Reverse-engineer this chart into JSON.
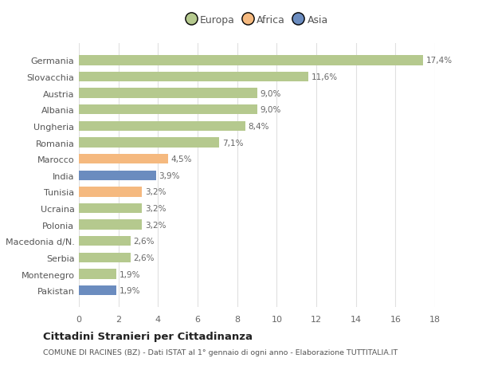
{
  "categories": [
    "Pakistan",
    "Montenegro",
    "Serbia",
    "Macedonia d/N.",
    "Polonia",
    "Ucraina",
    "Tunisia",
    "India",
    "Marocco",
    "Romania",
    "Ungheria",
    "Albania",
    "Austria",
    "Slovacchia",
    "Germania"
  ],
  "values": [
    1.9,
    1.9,
    2.6,
    2.6,
    3.2,
    3.2,
    3.2,
    3.9,
    4.5,
    7.1,
    8.4,
    9.0,
    9.0,
    11.6,
    17.4
  ],
  "labels": [
    "1,9%",
    "1,9%",
    "2,6%",
    "2,6%",
    "3,2%",
    "3,2%",
    "3,2%",
    "3,9%",
    "4,5%",
    "7,1%",
    "8,4%",
    "9,0%",
    "9,0%",
    "11,6%",
    "17,4%"
  ],
  "continents": [
    "Asia",
    "Europa",
    "Europa",
    "Europa",
    "Europa",
    "Europa",
    "Africa",
    "Asia",
    "Africa",
    "Europa",
    "Europa",
    "Europa",
    "Europa",
    "Europa",
    "Europa"
  ],
  "colors": {
    "Europa": "#b5c98e",
    "Africa": "#f5b97f",
    "Asia": "#6b8cbf"
  },
  "legend_items": [
    "Europa",
    "Africa",
    "Asia"
  ],
  "legend_colors": [
    "#b5c98e",
    "#f5b97f",
    "#6b8cbf"
  ],
  "title": "Cittadini Stranieri per Cittadinanza",
  "subtitle": "COMUNE DI RACINES (BZ) - Dati ISTAT al 1° gennaio di ogni anno - Elaborazione TUTTITALIA.IT",
  "xlim": [
    0,
    18
  ],
  "xticks": [
    0,
    2,
    4,
    6,
    8,
    10,
    12,
    14,
    16,
    18
  ],
  "background_color": "#ffffff",
  "bar_height": 0.6,
  "grid_color": "#e0e0e0"
}
